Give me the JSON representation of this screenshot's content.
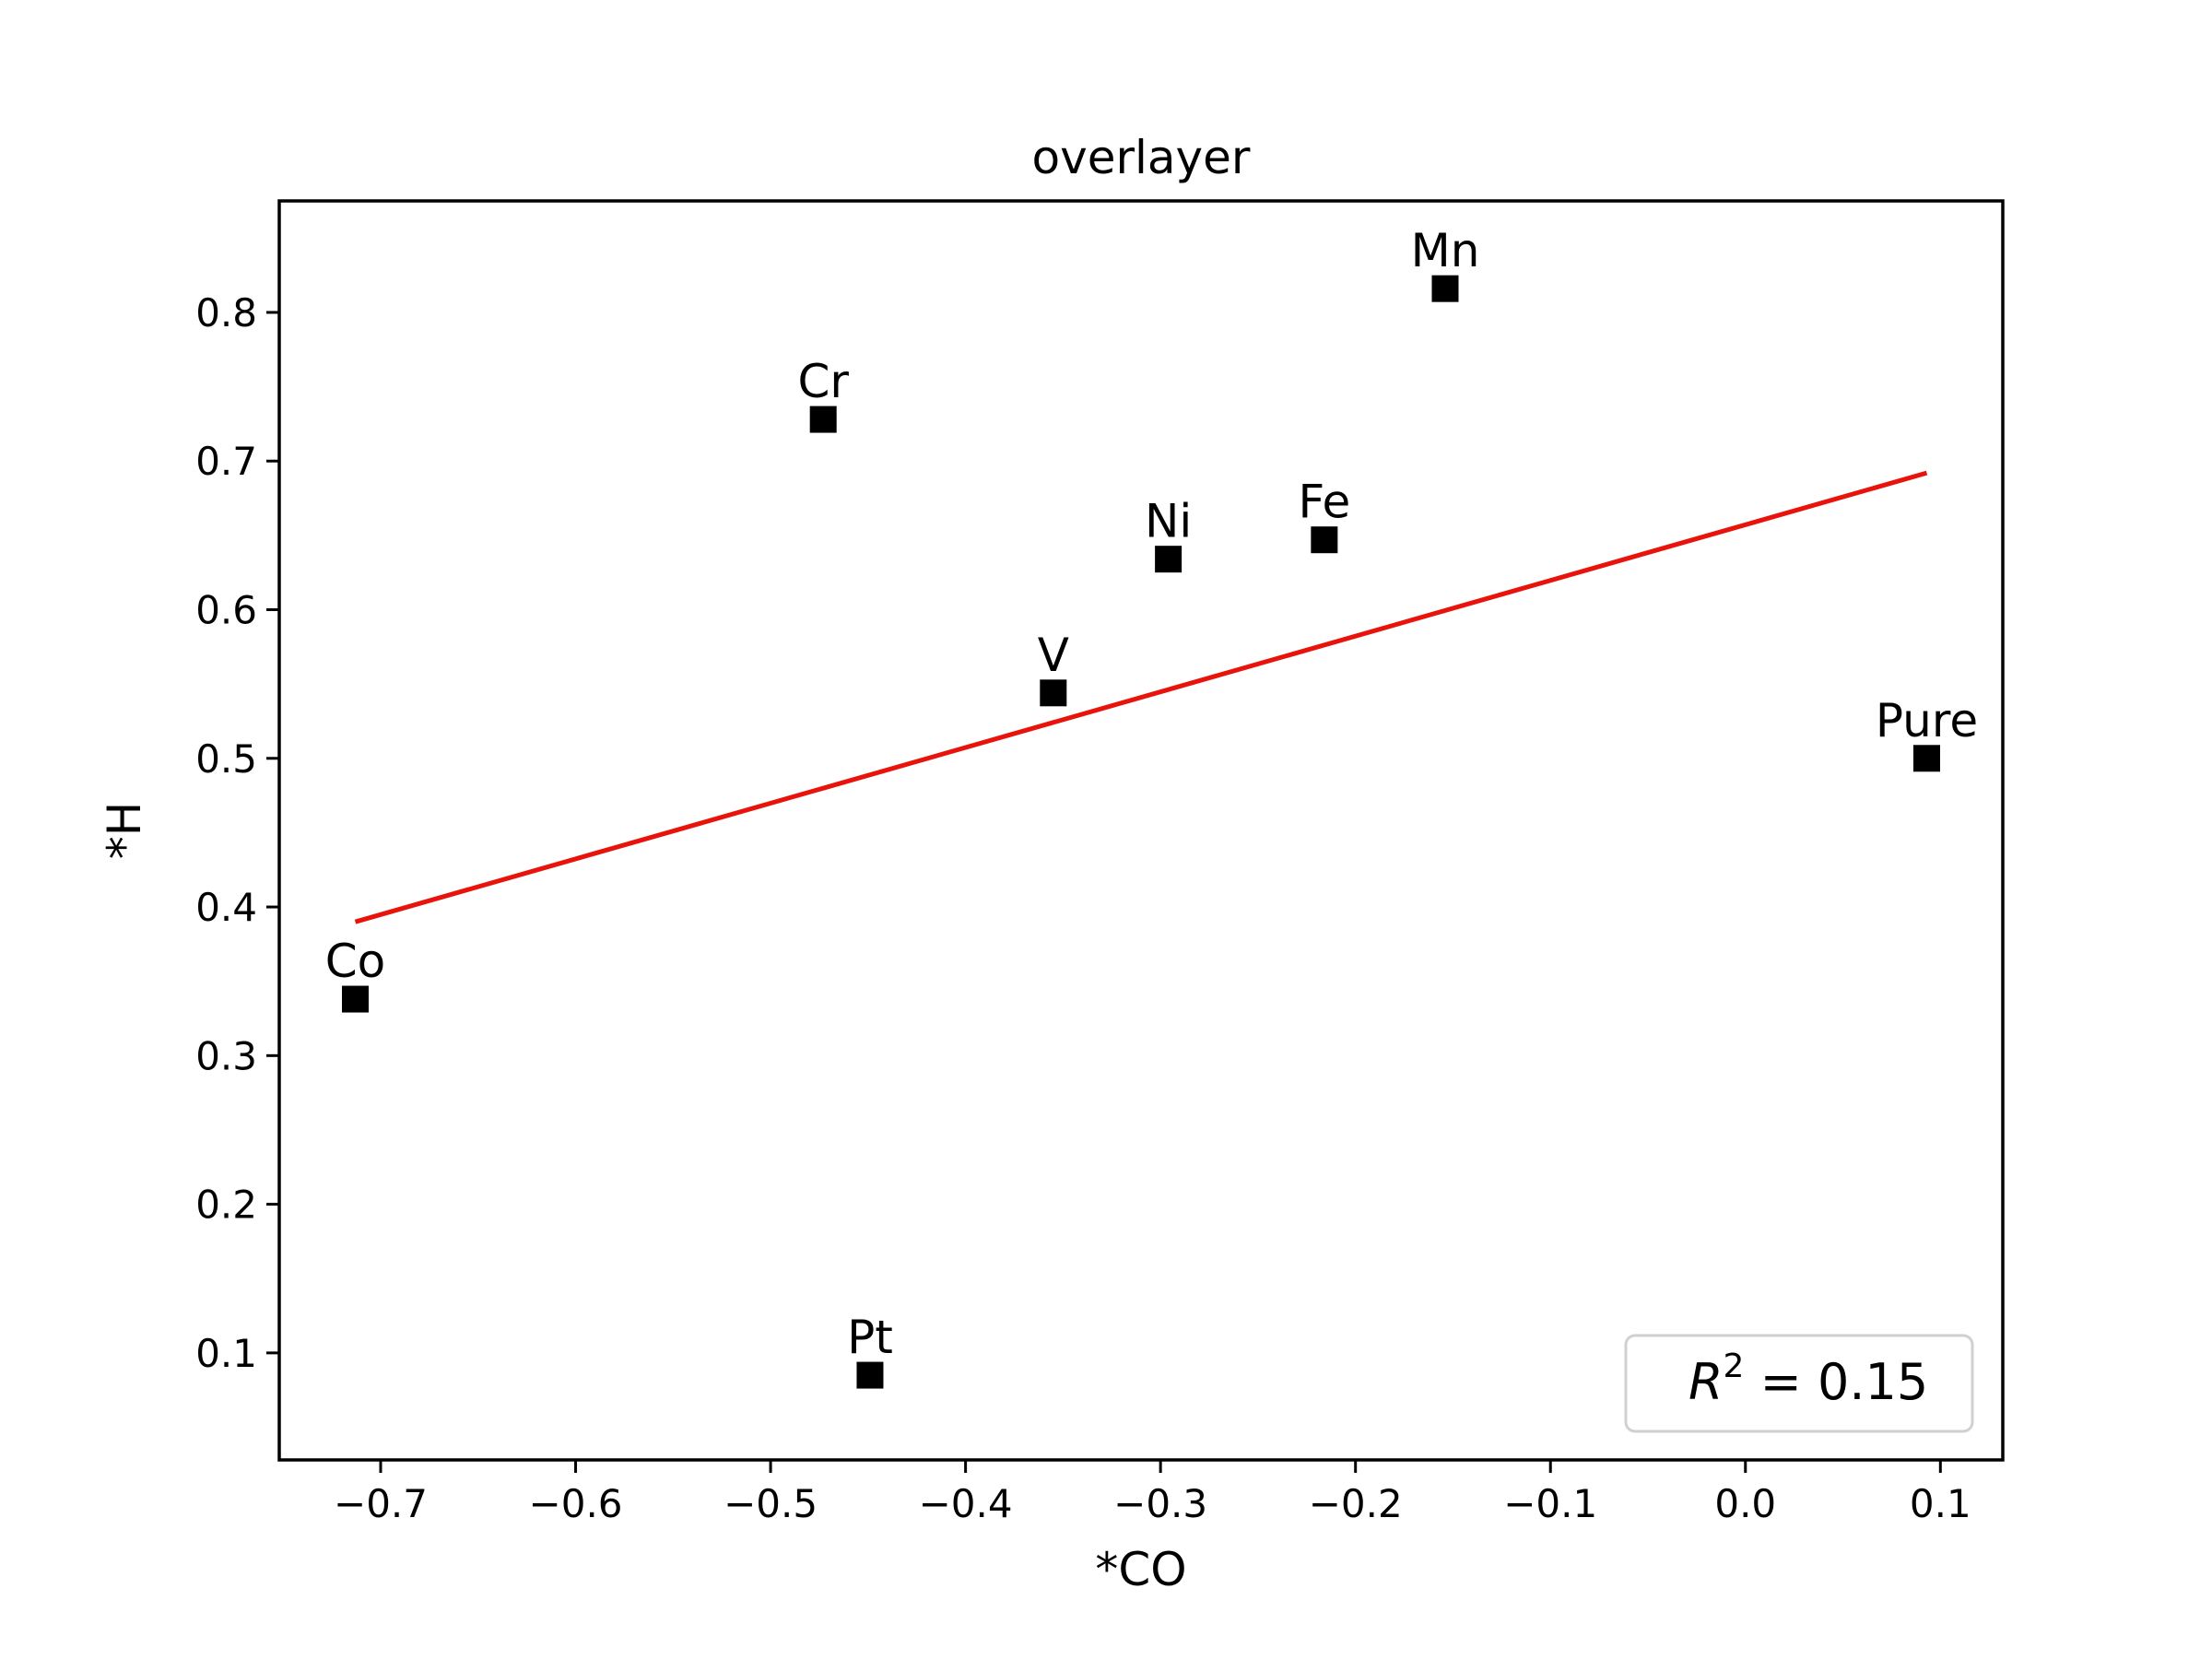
{
  "chart_data": {
    "type": "scatter",
    "title": "overlayer",
    "xlabel": "*CO",
    "ylabel": "*H",
    "xlim": [
      -0.752,
      0.132
    ],
    "ylim": [
      0.028,
      0.875
    ],
    "x_ticks": [
      -0.7,
      -0.6,
      -0.5,
      -0.4,
      -0.3,
      -0.2,
      -0.1,
      0.0,
      0.1
    ],
    "x_tick_labels": [
      "−0.7",
      "−0.6",
      "−0.5",
      "−0.4",
      "−0.3",
      "−0.2",
      "−0.1",
      "0.0",
      "0.1"
    ],
    "y_ticks": [
      0.1,
      0.2,
      0.3,
      0.4,
      0.5,
      0.6,
      0.7,
      0.8
    ],
    "y_tick_labels": [
      "0.1",
      "0.2",
      "0.3",
      "0.4",
      "0.5",
      "0.6",
      "0.7",
      "0.8"
    ],
    "grid": false,
    "points": [
      {
        "label": "Co",
        "x": -0.713,
        "y": 0.338
      },
      {
        "label": "Cr",
        "x": -0.473,
        "y": 0.728
      },
      {
        "label": "Pt",
        "x": -0.449,
        "y": 0.085
      },
      {
        "label": "V",
        "x": -0.355,
        "y": 0.544
      },
      {
        "label": "Ni",
        "x": -0.296,
        "y": 0.634
      },
      {
        "label": "Fe",
        "x": -0.216,
        "y": 0.647
      },
      {
        "label": "Mn",
        "x": -0.154,
        "y": 0.816
      },
      {
        "label": "Pure",
        "x": 0.093,
        "y": 0.5
      }
    ],
    "fit_line": {
      "x": [
        -0.713,
        0.093
      ],
      "y": [
        0.39,
        0.692
      ],
      "color": "#e8140c"
    },
    "marker_color": "#000000",
    "legend": {
      "placement": "lower-right",
      "r_label": "R",
      "r_exponent": "2",
      "r_value_text": " = 0.15"
    }
  }
}
